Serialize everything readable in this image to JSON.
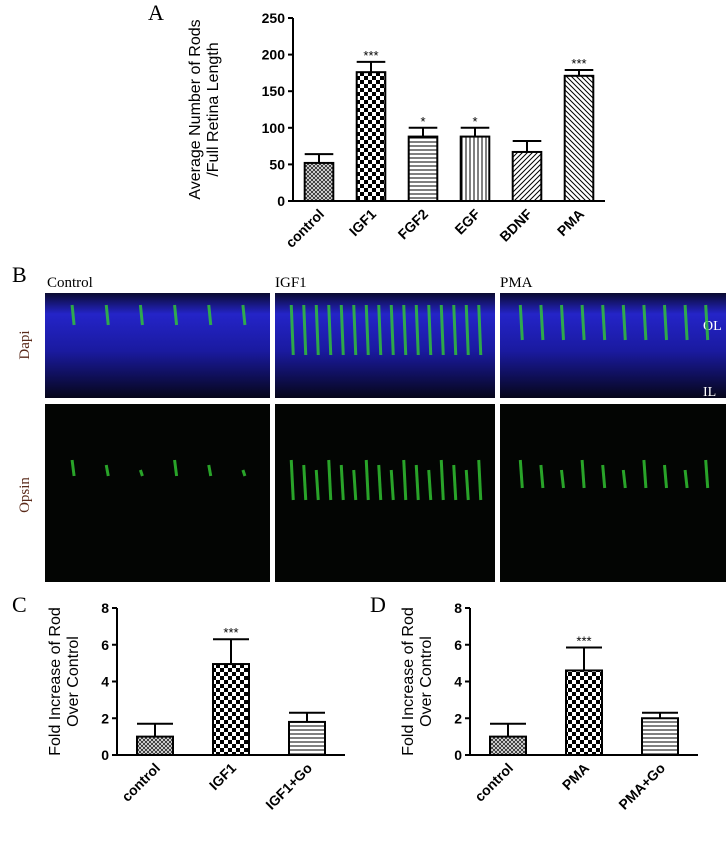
{
  "chart_data": [
    {
      "type": "bar",
      "panel": "A",
      "ylabel": [
        "Average Number of Rods",
        "/Full Retina Length"
      ],
      "categories": [
        "control",
        "IGF1",
        "FGF2",
        "EGF",
        "BDNF",
        "PMA"
      ],
      "values": [
        52,
        176,
        88,
        88,
        67,
        171
      ],
      "errors": [
        12,
        14,
        12,
        12,
        15,
        8
      ],
      "annotations": [
        null,
        "***",
        "*",
        "*",
        null,
        "***"
      ],
      "patterns": [
        "crosshatch",
        "checker",
        "horizontal",
        "vertical",
        "diagonal-left",
        "diagonal-right"
      ],
      "color": "#000000",
      "ylim": [
        0,
        250
      ],
      "yticks": [
        0,
        50,
        100,
        150,
        200,
        250
      ]
    },
    {
      "type": "bar",
      "panel": "C",
      "ylabel": [
        "Fold Increase of Rod",
        "Over Control"
      ],
      "categories": [
        "control",
        "IGF1",
        "IGF1+Go"
      ],
      "values": [
        1.0,
        4.95,
        1.8
      ],
      "errors": [
        0.7,
        1.35,
        0.5
      ],
      "annotations": [
        null,
        "***",
        null
      ],
      "patterns": [
        "crosshatch",
        "checker",
        "horizontal"
      ],
      "color": "#000000",
      "ylim": [
        0,
        8
      ],
      "yticks": [
        0,
        2,
        4,
        6,
        8
      ]
    },
    {
      "type": "bar",
      "panel": "D",
      "ylabel": [
        "Fold Increase of Rod",
        "Over Control"
      ],
      "categories": [
        "control",
        "PMA",
        "PMA+Go"
      ],
      "values": [
        1.0,
        4.6,
        2.0
      ],
      "errors": [
        0.7,
        1.25,
        0.3
      ],
      "annotations": [
        null,
        "***",
        null
      ],
      "patterns": [
        "crosshatch",
        "checker",
        "horizontal"
      ],
      "color": "#000000",
      "ylim": [
        0,
        8
      ],
      "yticks": [
        0,
        2,
        4,
        6,
        8
      ]
    }
  ],
  "micrographs": {
    "panel": "B",
    "columns": [
      "Control",
      "IGF1",
      "PMA"
    ],
    "rows": [
      "Dapi",
      "Opsin"
    ],
    "layer_labels": [
      "OL",
      "IL"
    ]
  }
}
